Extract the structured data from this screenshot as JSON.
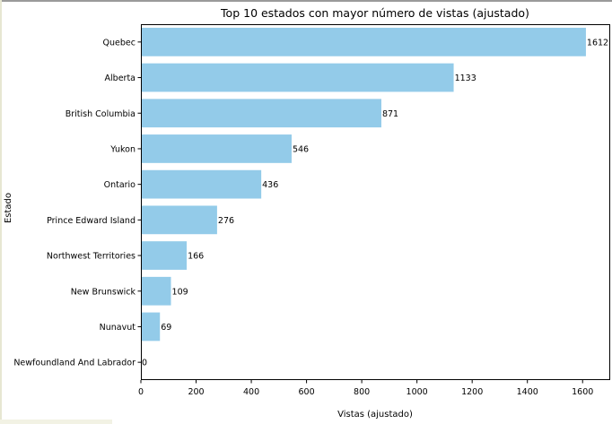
{
  "chart_data": {
    "type": "bar",
    "orientation": "horizontal",
    "title": "Top 10 estados con mayor número de vistas (ajustado)",
    "xlabel": "Vistas (ajustado)",
    "ylabel": "Estado",
    "categories": [
      "Quebec",
      "Alberta",
      "British Columbia",
      "Yukon",
      "Ontario",
      "Prince Edward Island",
      "Northwest Territories",
      "New Brunswick",
      "Nunavut",
      "Newfoundland And Labrador"
    ],
    "values": [
      1612,
      1133,
      871,
      546,
      436,
      276,
      166,
      109,
      69,
      0
    ],
    "data_labels": [
      "1612",
      "1133",
      "871",
      "546",
      "436",
      "276",
      "166",
      "109",
      "69",
      "0"
    ],
    "xlim": [
      0,
      1700
    ],
    "xticks": [
      0,
      200,
      400,
      600,
      800,
      1000,
      1200,
      1400,
      1600
    ],
    "xtick_labels": [
      "0",
      "200",
      "400",
      "600",
      "800",
      "1000",
      "1200",
      "1400",
      "1600"
    ],
    "bar_color": "#93cbe9",
    "grid": false,
    "legend": "none"
  }
}
